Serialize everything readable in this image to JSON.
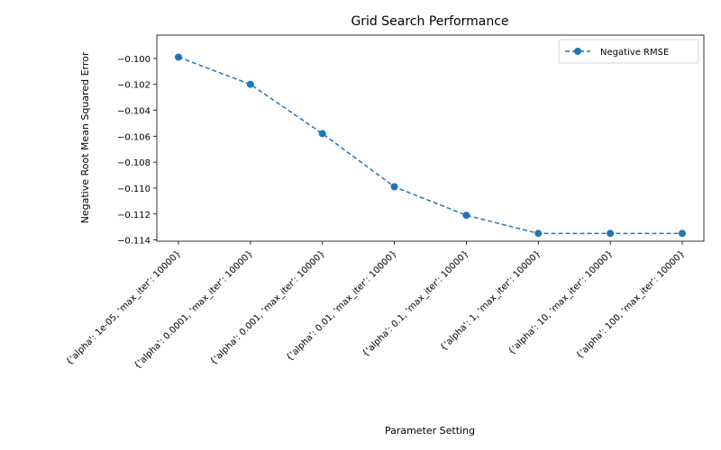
{
  "chart_data": {
    "type": "line",
    "title": "Grid Search Performance",
    "xlabel": "Parameter Setting",
    "ylabel": "Negative Root Mean Squared Error",
    "categories": [
      "{'alpha': 1e-05, 'max_iter': 10000}",
      "{'alpha': 0.0001, 'max_iter': 10000}",
      "{'alpha': 0.001, 'max_iter': 10000}",
      "{'alpha': 0.01, 'max_iter': 10000}",
      "{'alpha': 0.1, 'max_iter': 10000}",
      "{'alpha': 1, 'max_iter': 10000}",
      "{'alpha': 10, 'max_iter': 10000}",
      "{'alpha': 100, 'max_iter': 10000}"
    ],
    "series": [
      {
        "name": "Negative RMSE",
        "values": [
          -0.0999,
          -0.102,
          -0.1058,
          -0.1099,
          -0.1121,
          -0.1135,
          -0.1135,
          -0.1135
        ],
        "color": "#1f77b4",
        "linestyle": "dashed",
        "marker": "circle"
      }
    ],
    "ylim": [
      -0.1141,
      -0.0982
    ],
    "yticks": [
      -0.1,
      -0.102,
      -0.104,
      -0.106,
      -0.108,
      -0.11,
      -0.112,
      -0.114
    ],
    "ytick_labels": [
      "−0.100",
      "−0.102",
      "−0.104",
      "−0.106",
      "−0.108",
      "−0.110",
      "−0.112",
      "−0.114"
    ],
    "grid": false,
    "legend_position": "top-right"
  }
}
